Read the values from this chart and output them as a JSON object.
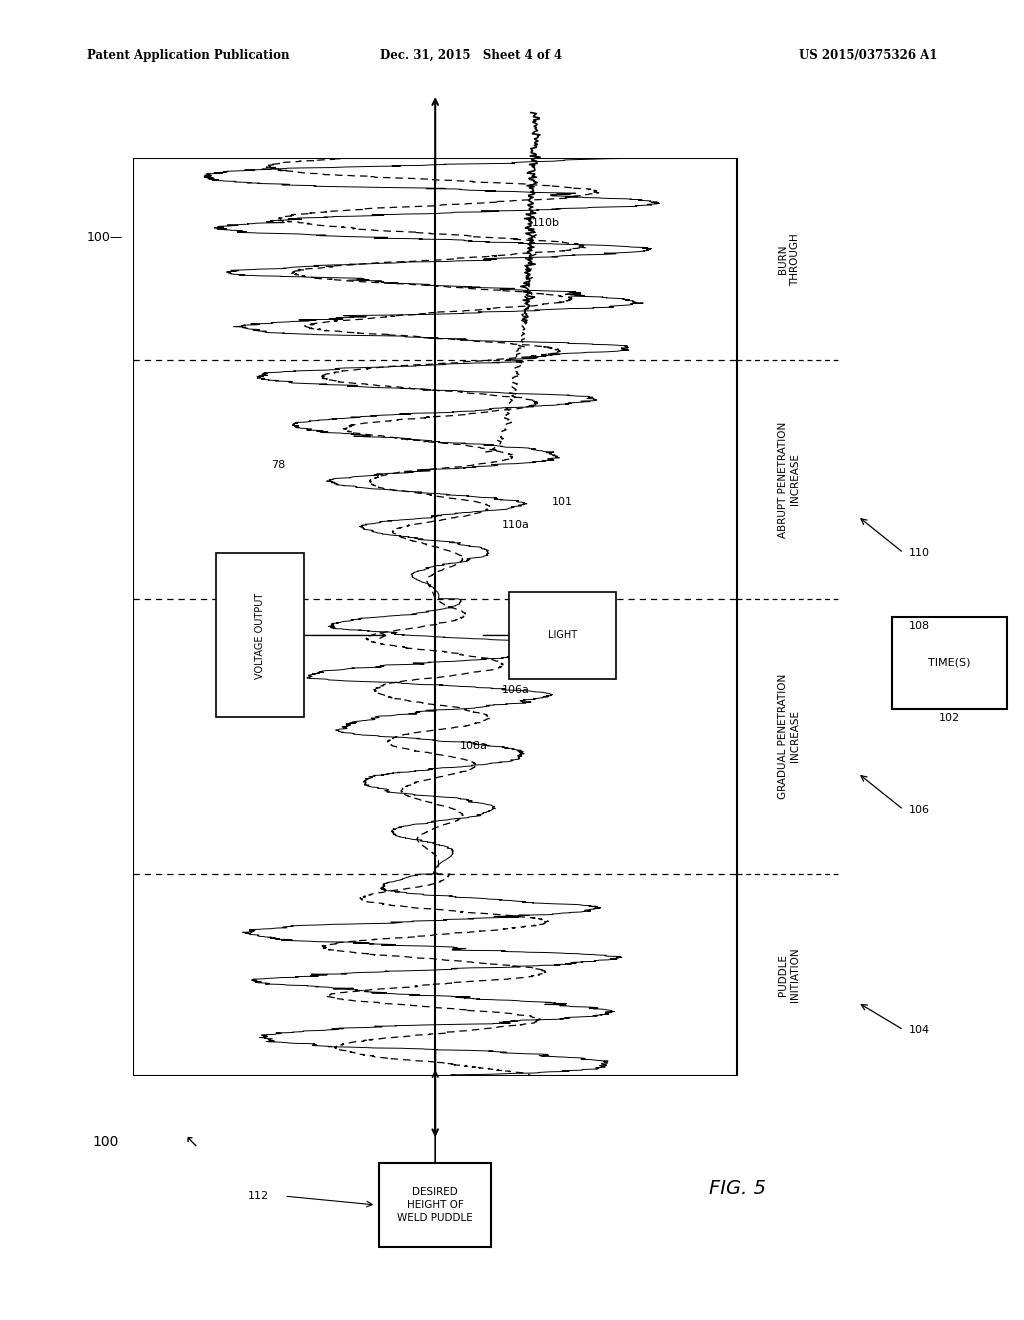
{
  "header_left": "Patent Application Publication",
  "header_center": "Dec. 31, 2015   Sheet 4 of 4",
  "header_right": "US 2015/0375326 A1",
  "fig_label": "FIG. 5",
  "ref_100": "100",
  "ref_102": "102",
  "ref_104": "104",
  "ref_106": "106",
  "ref_106a": "106a",
  "ref_108": "108",
  "ref_108a": "108a",
  "ref_110": "110",
  "ref_110a": "110a",
  "ref_110b": "110b",
  "ref_112": "112",
  "ref_78": "78",
  "ref_101": "101",
  "label_voltage": "VOLTAGE OUTPUT",
  "label_light": "LIGHT",
  "label_time": "TIME(S)",
  "label_desired": "DESIRED\nHEIGHT OF\nWELD PUDDLE",
  "label_puddle": "PUDDLE\nINITIATION",
  "label_gradual": "GRADUAL PENETRATION\nINCREASE",
  "label_abrupt": "ABRUPT PENETRATION\nINCREASE",
  "label_burn": "BURN\nTHROUGH",
  "bg_color": "#ffffff",
  "line_color": "#000000"
}
